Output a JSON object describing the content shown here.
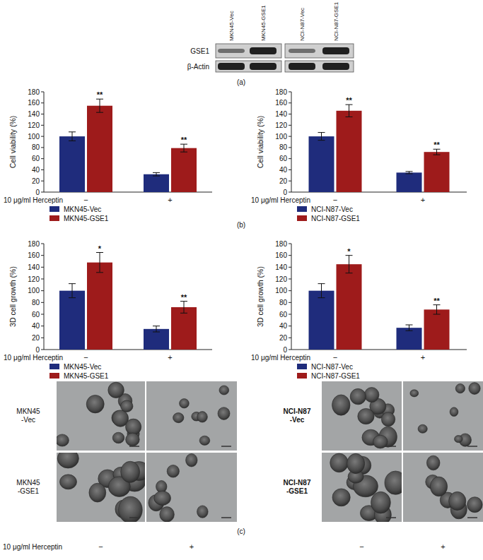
{
  "figure": {
    "panel_labels": [
      "(a)",
      "(b)",
      "(c)"
    ]
  },
  "blot": {
    "lanes": [
      "MKN45-Vec",
      "MKN45-GSE1",
      "NCI-N87-Vec",
      "NCI-N87-GSE1"
    ],
    "rows": [
      "GSE1",
      "β-Actin"
    ]
  },
  "chart_data": [
    {
      "type": "bar",
      "y_label": "Cell viability (%)",
      "x_label": "10 μg/ml Herceptin",
      "categories": [
        "−",
        "+"
      ],
      "series": [
        {
          "name": "MKN45-Vec",
          "color": "#1f2c7c",
          "values": [
            100,
            32
          ],
          "errors": [
            8,
            3
          ]
        },
        {
          "name": "MKN45-GSE1",
          "color": "#9e1b1b",
          "values": [
            155,
            79
          ],
          "errors": [
            12,
            7
          ],
          "significance": [
            "**",
            "**"
          ]
        }
      ],
      "ylim": [
        0,
        180
      ],
      "yticks": [
        0,
        20,
        40,
        60,
        80,
        100,
        120,
        140,
        160,
        180
      ],
      "legend": "bottom"
    },
    {
      "type": "bar",
      "y_label": "Cell viability (%)",
      "x_label": "10 μg/ml Herceptin",
      "categories": [
        "−",
        "+"
      ],
      "series": [
        {
          "name": "NCI-N87-Vec",
          "color": "#1f2c7c",
          "values": [
            100,
            35
          ],
          "errors": [
            7,
            2
          ]
        },
        {
          "name": "NCI-N87-GSE1",
          "color": "#9e1b1b",
          "values": [
            146,
            72
          ],
          "errors": [
            11,
            5
          ],
          "significance": [
            "**",
            "**"
          ]
        }
      ],
      "ylim": [
        0,
        180
      ],
      "yticks": [
        0,
        20,
        40,
        60,
        80,
        100,
        120,
        140,
        160,
        180
      ],
      "legend": "bottom"
    },
    {
      "type": "bar",
      "y_label": "3D cell growth (%)",
      "x_label": "10 μg/ml Herceptin",
      "categories": [
        "−",
        "+"
      ],
      "series": [
        {
          "name": "MKN45-Vec",
          "color": "#1f2c7c",
          "values": [
            100,
            35
          ],
          "errors": [
            12,
            5
          ]
        },
        {
          "name": "MKN45-GSE1",
          "color": "#9e1b1b",
          "values": [
            148,
            72
          ],
          "errors": [
            17,
            10
          ],
          "significance": [
            "*",
            "**"
          ]
        }
      ],
      "ylim": [
        0,
        180
      ],
      "yticks": [
        0,
        20,
        40,
        60,
        80,
        100,
        120,
        140,
        160,
        180
      ],
      "legend": "bottom"
    },
    {
      "type": "bar",
      "y_label": "3D cell growth (%)",
      "x_label": "10 μg/ml Herceptin",
      "categories": [
        "−",
        "+"
      ],
      "series": [
        {
          "name": "NCI-N87-Vec",
          "color": "#1f2c7c",
          "values": [
            100,
            37
          ],
          "errors": [
            12,
            5
          ]
        },
        {
          "name": "NCI-N87-GSE1",
          "color": "#9e1b1b",
          "values": [
            145,
            68
          ],
          "errors": [
            15,
            8
          ],
          "significance": [
            "*",
            "**"
          ]
        }
      ],
      "ylim": [
        0,
        180
      ],
      "yticks": [
        0,
        20,
        40,
        60,
        80,
        100,
        120,
        140,
        160,
        180
      ],
      "legend": "bottom"
    }
  ],
  "micrographs": {
    "column_title": "10 μg/ml Herceptin",
    "columns": [
      "−",
      "+"
    ],
    "groups": [
      {
        "rows": [
          [
            "MKN45",
            "-Vec"
          ],
          [
            "MKN45",
            "-GSE1"
          ]
        ]
      },
      {
        "rows": [
          [
            "NCI-N87",
            "-Vec"
          ],
          [
            "NCI-N87",
            "-GSE1"
          ]
        ]
      }
    ]
  }
}
